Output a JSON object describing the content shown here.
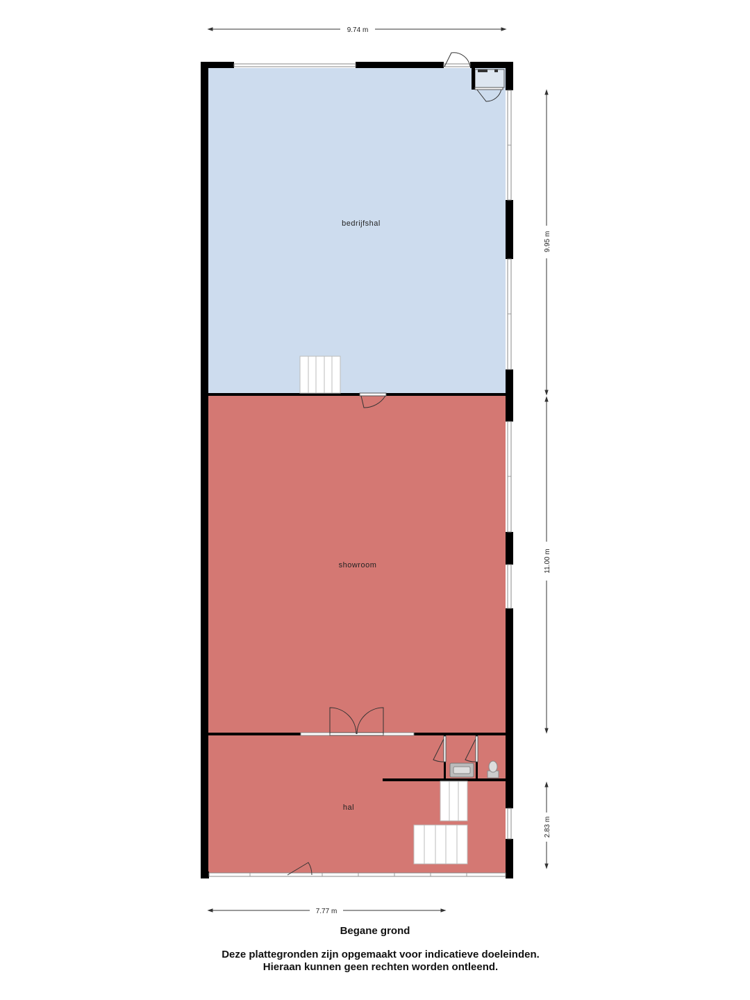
{
  "colors": {
    "bedrijfshal_fill": "#cddcee",
    "showroom_fill": "#d47873",
    "hal_fill": "#d47873",
    "wall": "#000000",
    "dimension_line": "#333333"
  },
  "rooms": {
    "bedrijfshal": "bedrijfshal",
    "showroom": "showroom",
    "hal": "hal"
  },
  "dimensions": {
    "top_width": "9.74 m",
    "bottom_width": "7.77 m",
    "right_upper": "9.95 m",
    "right_middle": "11.00 m",
    "right_lower": "2.83 m"
  },
  "floor_title": "Begane grond",
  "disclaimer": {
    "line1": "Deze plattegronden zijn opgemaakt voor indicatieve doeleinden.",
    "line2": "Hieraan kunnen geen rechten worden ontleend."
  }
}
